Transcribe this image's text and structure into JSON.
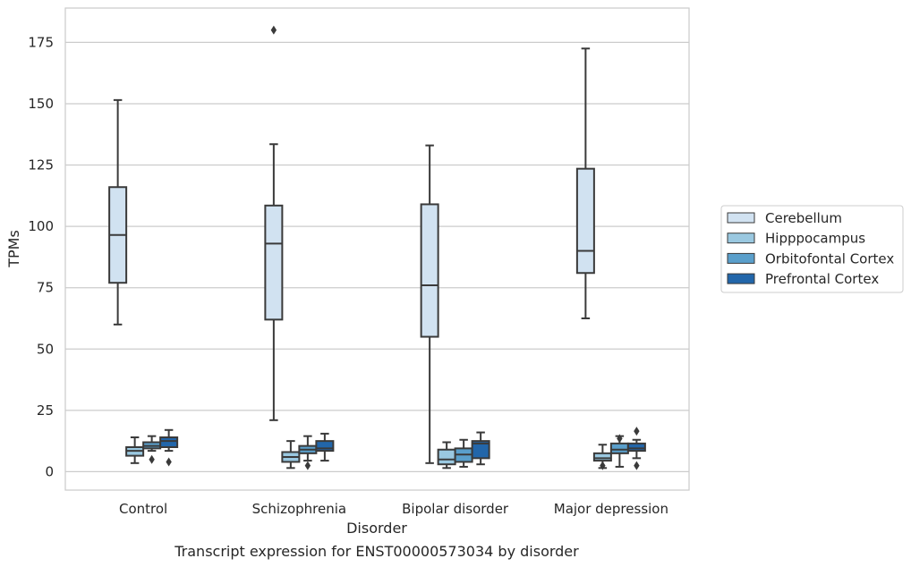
{
  "caption": "Transcript expression for ENST00000573034 by disorder",
  "chart_data": {
    "type": "boxplot",
    "title": "",
    "xlabel": "Disorder",
    "ylabel": "TPMs",
    "ylim": [
      -7.5,
      189
    ],
    "yticks": [
      0,
      25,
      50,
      75,
      100,
      125,
      150,
      175
    ],
    "grid": true,
    "legend_position": "right",
    "categories": [
      "Control",
      "Schizophrenia",
      "Bipolar disorder",
      "Major depression"
    ],
    "series": [
      {
        "name": "Cerebellum",
        "color": "#d1e2f1",
        "boxes": [
          {
            "whislo": 60,
            "q1": 77,
            "med": 96.5,
            "q3": 116,
            "whishi": 151.5,
            "fliers": []
          },
          {
            "whislo": 21,
            "q1": 62,
            "med": 93,
            "q3": 108.5,
            "whishi": 133.5,
            "fliers": [
              180
            ]
          },
          {
            "whislo": 3.5,
            "q1": 55,
            "med": 76,
            "q3": 109,
            "whishi": 133,
            "fliers": []
          },
          {
            "whislo": 62.5,
            "q1": 81,
            "med": 90,
            "q3": 123.5,
            "whishi": 172.5,
            "fliers": []
          }
        ]
      },
      {
        "name": "Hipppocampus",
        "color": "#9ac8e0",
        "boxes": [
          {
            "whislo": 3.5,
            "q1": 6.5,
            "med": 8.5,
            "q3": 10,
            "whishi": 14,
            "fliers": []
          },
          {
            "whislo": 1.5,
            "q1": 4,
            "med": 6,
            "q3": 8,
            "whishi": 12.5,
            "fliers": []
          },
          {
            "whislo": 1.5,
            "q1": 3,
            "med": 5,
            "q3": 9,
            "whishi": 12,
            "fliers": []
          },
          {
            "whislo": 1.5,
            "q1": 4.5,
            "med": 5.5,
            "q3": 7.5,
            "whishi": 11,
            "fliers": [
              2.5
            ]
          }
        ]
      },
      {
        "name": "Orbitofontal Cortex",
        "color": "#5a9fcb",
        "boxes": [
          {
            "whislo": 8.5,
            "q1": 9.5,
            "med": 10.5,
            "q3": 12,
            "whishi": 14.5,
            "fliers": [
              5
            ]
          },
          {
            "whislo": 4.5,
            "q1": 7.5,
            "med": 9,
            "q3": 10.5,
            "whishi": 14.5,
            "fliers": [
              2.5
            ]
          },
          {
            "whislo": 2,
            "q1": 4,
            "med": 7,
            "q3": 9.5,
            "whishi": 13,
            "fliers": []
          },
          {
            "whislo": 2,
            "q1": 7.5,
            "med": 9,
            "q3": 11.5,
            "whishi": 14.5,
            "fliers": [
              13.5
            ]
          }
        ]
      },
      {
        "name": "Prefrontal Cortex",
        "color": "#2266aa",
        "boxes": [
          {
            "whislo": 8.5,
            "q1": 10,
            "med": 12.5,
            "q3": 14,
            "whishi": 17,
            "fliers": [
              4
            ]
          },
          {
            "whislo": 4.5,
            "q1": 8.5,
            "med": 9.5,
            "q3": 12.5,
            "whishi": 15.5,
            "fliers": []
          },
          {
            "whislo": 3,
            "q1": 5.5,
            "med": 11.5,
            "q3": 12.5,
            "whishi": 16,
            "fliers": []
          },
          {
            "whislo": 5.5,
            "q1": 8.5,
            "med": 9.5,
            "q3": 11.5,
            "whishi": 13,
            "fliers": [
              16.5,
              2.5
            ]
          }
        ]
      }
    ]
  }
}
